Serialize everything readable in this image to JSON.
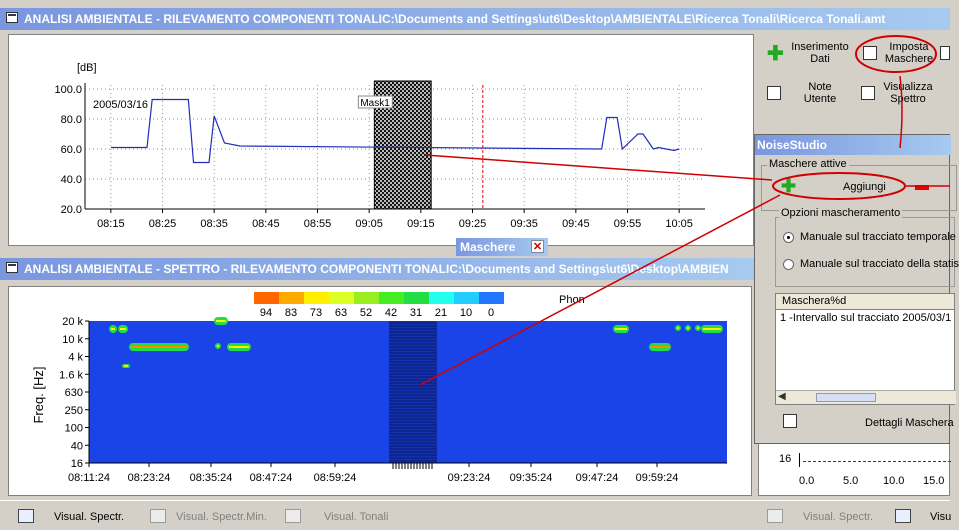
{
  "top_window": {
    "title": "ANALISI AMBIENTALE - RILEVAMENTO COMPONENTI TONALIC:\\Documents and Settings\\ut6\\Desktop\\AMBIENTALE\\Ricerca Tonali\\Ricerca Tonali.amt",
    "date_label": "2005/03/16",
    "mask_label": "Mask1"
  },
  "right_toolbar": {
    "insert_data": "Inserimento\nDati",
    "set_masks": "Imposta\nMaschere",
    "user_notes": "Note\nUtente",
    "view_spectrum": "Visualizza\nSpettro"
  },
  "masks_tab": {
    "label": "Maschere"
  },
  "spectrum_window": {
    "title": "ANALISI AMBIENTALE  - SPETTRO - RILEVAMENTO COMPONENTI TONALIC:\\Documents and Settings\\ut6\\Desktop\\AMBIEN",
    "unit": "Phon",
    "yaxis_label": "Freq. [Hz]",
    "legend_values": [
      "94",
      "83",
      "73",
      "63",
      "52",
      "42",
      "31",
      "21",
      "10",
      "0"
    ],
    "legend_colors": [
      "#ff6600",
      "#ffaa00",
      "#ffee00",
      "#ddff22",
      "#99ee22",
      "#44ee22",
      "#22dd44",
      "#22ffee",
      "#22ccff",
      "#2277ff"
    ],
    "y_ticks": [
      "20 k",
      "10 k",
      "4 k",
      "1.6 k",
      "630",
      "250",
      "100",
      "40",
      "16"
    ],
    "x_ticks": [
      "08:11:24",
      "08:23:24",
      "08:35:24",
      "08:47:24",
      "08:59:24",
      "09:23:24",
      "09:35:24",
      "09:47:24",
      "09:59:24"
    ]
  },
  "chart_data": {
    "type": "line",
    "ylabel": "[dB]",
    "ylim": [
      20,
      100
    ],
    "y_ticks": [
      "100.0",
      "80.0",
      "60.0",
      "40.0",
      "20.0"
    ],
    "x_ticks": [
      "08:15",
      "08:25",
      "08:35",
      "08:45",
      "08:55",
      "09:05",
      "09:15",
      "09:25",
      "09:35",
      "09:45",
      "09:55",
      "10:05"
    ],
    "series": [
      {
        "x": [
          "08:15",
          "08:22",
          "08:23",
          "08:30",
          "08:31",
          "08:34",
          "08:35",
          "08:37",
          "08:40",
          "09:50",
          "09:51",
          "09:53",
          "09:54",
          "09:57",
          "09:58",
          "10:00",
          "10:01",
          "10:04",
          "10:05"
        ],
        "values": [
          61,
          61,
          93,
          93,
          51,
          51,
          82,
          64,
          62,
          60,
          81,
          81,
          60,
          70,
          70,
          60,
          61,
          59,
          60
        ]
      }
    ],
    "grid": true
  },
  "bottom_bar": {
    "visual_spectr": "Visual. Spectr.",
    "visual_spectr_min": "Visual. Spectr.Min.",
    "visual_tonali": "Visual. Tonali",
    "visual_spectr_right": "Visual. Spectr.",
    "visu_right": "Visu"
  },
  "dialog": {
    "title": "NoiseStudio",
    "group_active": "Maschere attive",
    "add_label": "Aggiungi",
    "group_options": "Opzioni mascheramento",
    "option_temporal": "Manuale sul tracciato temporale",
    "option_stat": "Manuale sul tracciato della statis",
    "list_header": "Maschera%d",
    "list_item": "1 -Intervallo sul tracciato 2005/03/1",
    "details_button": "Dettagli Maschera"
  },
  "right_mini_chart": {
    "y_tick": "16",
    "x_ticks": [
      "0.0",
      "5.0",
      "10.0",
      "15.0"
    ]
  }
}
